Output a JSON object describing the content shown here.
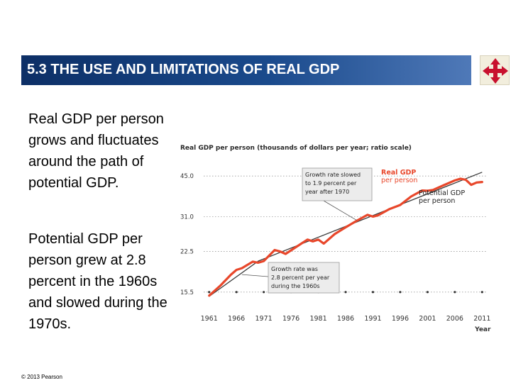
{
  "slide": {
    "title": "5.3  THE USE AND LIMITATIONS OF REAL GDP",
    "bullets": [
      "Real GDP per person grows and fluctuates around the path of potential GDP.",
      "Potential GDP per person grew at 2.8 percent in the 1960s and slowed during the 1970s."
    ],
    "copyright": "© 2013 Pearson"
  },
  "colors": {
    "title_bar": "#1a4a8c",
    "real_gdp": "#e8472b",
    "potential_gdp": "#3a3a3a",
    "callout_bg": "#ececec",
    "nav_icon": "#c8102e"
  },
  "nav_icon": "four-way-arrow-icon",
  "chart_data": {
    "type": "line",
    "title": "Real GDP per person (thousands of dollars per year; ratio scale)",
    "xlabel": "Year",
    "ylabel": "",
    "yscale": "log",
    "xlim": [
      1960,
      2012
    ],
    "ylim": [
      13.5,
      50
    ],
    "grid": "horizontal-dotted",
    "yticks": [
      15.5,
      22.5,
      31.0,
      45.0
    ],
    "ytick_labels": [
      "15.5",
      "22.5",
      "31.0",
      "45.0"
    ],
    "xticks": [
      1961,
      1966,
      1971,
      1976,
      1981,
      1986,
      1991,
      1996,
      2001,
      2006,
      2011
    ],
    "xtick_labels": [
      "1961",
      "1966",
      "1971",
      "1976",
      "1981",
      "1986",
      "1991",
      "1996",
      "2001",
      "2006",
      "2011"
    ],
    "series": [
      {
        "name": "Potential GDP per person",
        "x": [
          1961,
          1970,
          2011
        ],
        "y": [
          14.9,
          20.6,
          46.6
        ]
      },
      {
        "name": "Real GDP per person",
        "x": [
          1961,
          1963,
          1965,
          1966,
          1967,
          1969,
          1970,
          1971,
          1973,
          1974,
          1975,
          1977,
          1979,
          1980,
          1981,
          1982,
          1984,
          1986,
          1988,
          1990,
          1991,
          1992,
          1994,
          1996,
          1998,
          2000,
          2001,
          2002,
          2004,
          2006,
          2007,
          2008,
          2009,
          2010,
          2011
        ],
        "y": [
          15.0,
          16.4,
          18.2,
          19.0,
          19.3,
          20.5,
          20.3,
          20.6,
          22.8,
          22.5,
          22.0,
          23.5,
          25.1,
          24.7,
          25.1,
          24.2,
          26.4,
          28.1,
          29.8,
          31.5,
          31.0,
          31.4,
          33.2,
          34.5,
          37.3,
          39.4,
          39.3,
          39.6,
          41.4,
          43.2,
          43.9,
          43.5,
          41.5,
          42.4,
          42.6
        ]
      }
    ],
    "labels": {
      "real": [
        "Real GDP",
        "per person"
      ],
      "potential": [
        "Potential GDP",
        "per person"
      ]
    },
    "annotations": [
      {
        "lines": [
          "Growth rate slowed",
          "to 1.9 percent per",
          "year after 1970"
        ],
        "target": [
          1988,
          30.0
        ]
      },
      {
        "lines": [
          "Growth rate was",
          "2.8 percent per year",
          "during the 1960s"
        ],
        "target": [
          1967,
          18.2
        ]
      }
    ]
  }
}
